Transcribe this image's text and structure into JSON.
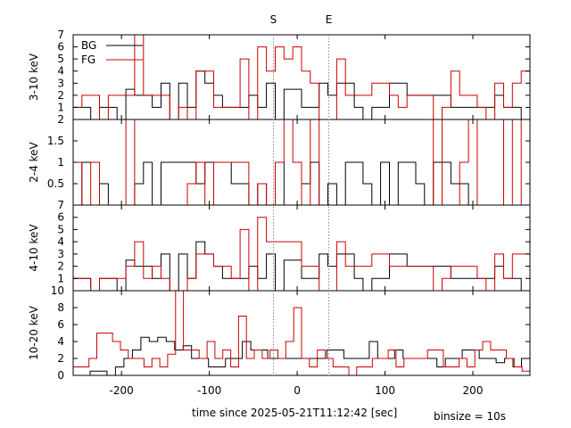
{
  "chart_data": {
    "type": "line",
    "style": "step",
    "xlabel": "time since 2025-05-21T11:12:42 [sec]",
    "binsize_label": "binsize = 10s",
    "xlim": [
      -255,
      265
    ],
    "xticks": [
      -200,
      -100,
      0,
      100,
      200
    ],
    "xtick_labels": [
      "-200",
      "-100",
      "0",
      "100",
      "200"
    ],
    "markers": [
      {
        "label": "S",
        "x": -27
      },
      {
        "label": "E",
        "x": 36
      }
    ],
    "marker_color": "#888888",
    "legend": {
      "placement": "top-left",
      "panel": 0
    },
    "series_styles": [
      {
        "name": "BG",
        "color": "#000000"
      },
      {
        "name": "FG",
        "color": "#cc0000"
      }
    ],
    "panels": [
      {
        "ylabel": "3-10 keV",
        "ylim": [
          0,
          7
        ],
        "yticks": [
          1,
          2,
          3,
          4,
          5,
          6,
          7
        ],
        "ytick_labels": [
          "1",
          "2",
          "3",
          "4",
          "5",
          "6",
          "7"
        ],
        "bottom_label": "2",
        "series": [
          {
            "name": "BG",
            "values": [
              1,
              1,
              0,
              1,
              1,
              0,
              2.5,
              2,
              2,
              1,
              3,
              0,
              3,
              1,
              4,
              3,
              2,
              1,
              1,
              1,
              2,
              1,
              3,
              0,
              2.5,
              2.5,
              1,
              1,
              3,
              2,
              3,
              3,
              1,
              0,
              1,
              1,
              3,
              3,
              2,
              2,
              2,
              2,
              2,
              1,
              1,
              1,
              1,
              1,
              2,
              1,
              1,
              0
            ]
          },
          {
            "name": "FG",
            "values": [
              1,
              2,
              2,
              0,
              2,
              2,
              2,
              7,
              2,
              2,
              2,
              0,
              1,
              0,
              4,
              4,
              1,
              1,
              1,
              5,
              0,
              6,
              4,
              6,
              5,
              6,
              4,
              3,
              0,
              0,
              5,
              2,
              2,
              2,
              3,
              3,
              2,
              1,
              2,
              2,
              2,
              0,
              1,
              4,
              2,
              2,
              1,
              0,
              3,
              1,
              3,
              4
            ]
          }
        ]
      },
      {
        "ylabel": "2-4 keV",
        "ylim": [
          0,
          2
        ],
        "yticks": [
          0.5,
          1,
          1.5
        ],
        "ytick_labels": [
          "0.5",
          "1",
          "1.5"
        ],
        "series": [
          {
            "name": "BG",
            "values": [
              0,
              1,
              1,
              0.5,
              0,
              0,
              0,
              0.5,
              1,
              0,
              1,
              1,
              1,
              1,
              0.5,
              1,
              1,
              1,
              0.5,
              0.5,
              0,
              0.5,
              0,
              1,
              0,
              0,
              0.5,
              1,
              0,
              0.5,
              0,
              1,
              1,
              0.5,
              0,
              1,
              0,
              1,
              1,
              0.5,
              0,
              1,
              1,
              0.5,
              0.5,
              0,
              0,
              0,
              0,
              0,
              0,
              0
            ]
          },
          {
            "name": "FG",
            "values": [
              1,
              0,
              1,
              0,
              0,
              0,
              2,
              0,
              0,
              0,
              0,
              0,
              0,
              0.5,
              1,
              0,
              1,
              1,
              1,
              1,
              0,
              0.5,
              0,
              1,
              2,
              1,
              0,
              2,
              0,
              0,
              0,
              0,
              0,
              0,
              0,
              0,
              0,
              0,
              0,
              0,
              0,
              2,
              0,
              0,
              1,
              2,
              0,
              0,
              0,
              2,
              0,
              2
            ]
          }
        ]
      },
      {
        "ylabel": "4-10 keV",
        "ylim": [
          0,
          7
        ],
        "yticks": [
          1,
          2,
          3,
          4,
          5,
          6,
          7
        ],
        "ytick_labels": [
          "1",
          "2",
          "3",
          "4",
          "5",
          "6",
          "7"
        ],
        "bottom_label": "10",
        "series": [
          {
            "name": "BG",
            "values": [
              1,
              1,
              0,
              1,
              1,
              0,
              2.5,
              2,
              2,
              1,
              3,
              0,
              3,
              1,
              4,
              3,
              2,
              1,
              1,
              1,
              2,
              1,
              3,
              0,
              2.5,
              2.5,
              1,
              1,
              3,
              2,
              3,
              3,
              1,
              0,
              1,
              1,
              3,
              3,
              2,
              2,
              2,
              2,
              2,
              1,
              1,
              1,
              1,
              1,
              2,
              1,
              1,
              0
            ]
          },
          {
            "name": "FG",
            "values": [
              1,
              1,
              0,
              1,
              1,
              1,
              2,
              4,
              1,
              2,
              1,
              0,
              0,
              1,
              3,
              3,
              2,
              2,
              1,
              5,
              0,
              6,
              4,
              4,
              4,
              4,
              2,
              2,
              0,
              0,
              4,
              2,
              2,
              2,
              3,
              3,
              2,
              2,
              2,
              2,
              2,
              0,
              1,
              2,
              2,
              2,
              1,
              0,
              3,
              1,
              3,
              3
            ]
          }
        ]
      },
      {
        "ylabel": "10-20 keV",
        "ylim": [
          0,
          10
        ],
        "yticks": [
          0,
          2,
          4,
          6,
          8
        ],
        "ytick_labels": [
          "0",
          "2",
          "4",
          "6",
          "8"
        ],
        "series": [
          {
            "name": "BG",
            "values": [
              0,
              0,
              0.5,
              0.5,
              0,
              1,
              2,
              3,
              4.5,
              4,
              4.5,
              4,
              3,
              3.5,
              2,
              2,
              1,
              1,
              2,
              2,
              4,
              3,
              3,
              2,
              2,
              2,
              2,
              2,
              2,
              2,
              3,
              3,
              2,
              2,
              2,
              4,
              2,
              2,
              3,
              2,
              2,
              2,
              2,
              1,
              2,
              2,
              3,
              3,
              2,
              2,
              1.5,
              2,
              1,
              2
            ]
          },
          {
            "name": "FG",
            "values": [
              1,
              1,
              2,
              5,
              5,
              4,
              3,
              2,
              2,
              1,
              2,
              1,
              2.5,
              10,
              3,
              3,
              2,
              4,
              2,
              3,
              1,
              7,
              2,
              3,
              2,
              3,
              2,
              4,
              8,
              2,
              1,
              3,
              2,
              1,
              1,
              0,
              1,
              1,
              2,
              2,
              3,
              1,
              2,
              2,
              2,
              3,
              3,
              1,
              1,
              2,
              1,
              3,
              4,
              3,
              3,
              2,
              1,
              0.5
            ]
          }
        ]
      }
    ]
  }
}
